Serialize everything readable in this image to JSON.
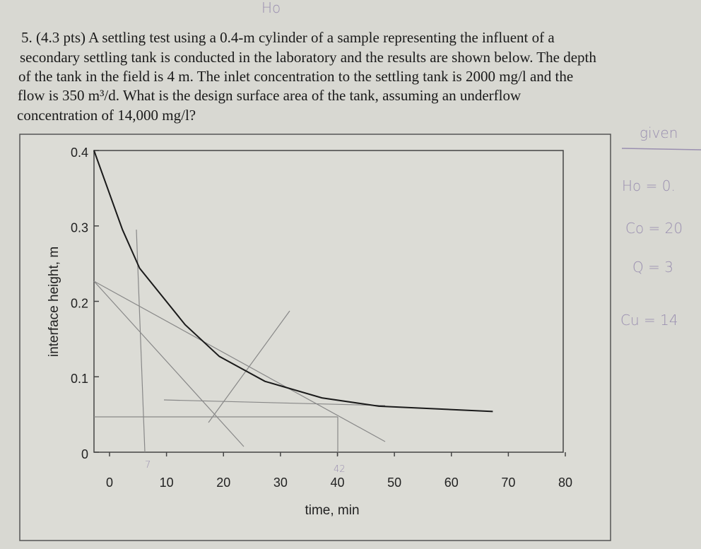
{
  "problem": {
    "lines": [
      "5. (4.3 pts) A settling test using a 0.4-m cylinder of a sample representing the influent of a",
      "secondary settling tank is conducted in the laboratory and the results are shown below. The depth",
      "of the tank in the field is 4 m. The inlet concentration to the settling tank is 2000 mg/l and the",
      "flow is 350 m³/d. What is the design surface area of the tank, assuming an underflow",
      "concentration of 14,000 mg/l?"
    ]
  },
  "notes": {
    "top": "Ho",
    "given": "given",
    "ho": "Ho = 0.",
    "co": "Co = 20",
    "q": "Q = 3",
    "cu": "Cu = 14",
    "t42": "42",
    "t7": "7"
  },
  "chart_data": {
    "type": "line",
    "x_label": "time, min",
    "y_label": "interface height, m",
    "x": [
      0,
      5,
      8,
      16,
      22,
      30,
      40,
      50,
      70
    ],
    "y": [
      0.4,
      0.295,
      0.244,
      0.169,
      0.127,
      0.094,
      0.072,
      0.061,
      0.054
    ],
    "color": "#1a1a1a",
    "xlim": [
      0,
      80
    ],
    "ylim": [
      0,
      0.4
    ],
    "xticks": [
      0,
      10,
      20,
      30,
      40,
      50,
      60,
      70,
      80
    ],
    "yticks": [
      0,
      0.1,
      0.2,
      0.3,
      0.4
    ]
  }
}
